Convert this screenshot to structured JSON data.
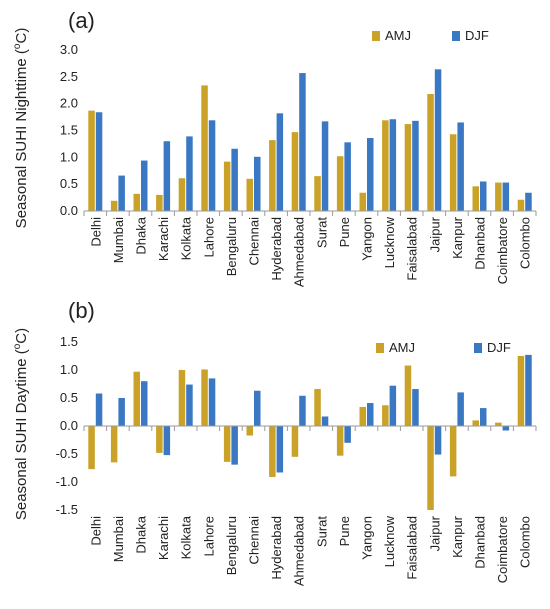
{
  "chart_data": [
    {
      "type": "bar",
      "panel_label": "(a)",
      "ylabel": "Seasonal SUHI Nighttime (°C)",
      "ylabel_main": "Seasonal SUHI Nighttime (",
      "ylabel_sup": "o",
      "ylabel_unit": "C)",
      "ylim": [
        0,
        3.0
      ],
      "yticks": [
        "0.0",
        "0.5",
        "1.0",
        "1.5",
        "2.0",
        "2.5",
        "3.0"
      ],
      "legend_position": "top-right",
      "grid": false,
      "categories": [
        "Delhi",
        "Mumbai",
        "Dhaka",
        "Karachi",
        "Kolkata",
        "Lahore",
        "Bengaluru",
        "Chennai",
        "Hyderabad",
        "Ahmedabad",
        "Surat",
        "Pune",
        "Yangon",
        "Lucknow",
        "Faisalabad",
        "Jaipur",
        "Kanpur",
        "Dhanbad",
        "Coimbatore",
        "Colombo"
      ],
      "series": [
        {
          "name": "AMJ",
          "color": "#c9a227",
          "values": [
            1.87,
            0.19,
            0.32,
            0.3,
            0.61,
            2.34,
            0.92,
            0.6,
            1.32,
            1.47,
            0.65,
            1.02,
            0.34,
            1.69,
            1.62,
            2.18,
            1.43,
            0.46,
            0.53,
            0.21
          ]
        },
        {
          "name": "DJF",
          "color": "#3a78c4",
          "values": [
            1.84,
            0.66,
            0.94,
            1.3,
            1.39,
            1.69,
            1.16,
            1.01,
            1.82,
            2.57,
            1.67,
            1.28,
            1.36,
            1.71,
            1.68,
            2.64,
            1.65,
            0.55,
            0.53,
            0.34
          ]
        }
      ]
    },
    {
      "type": "bar",
      "panel_label": "(b)",
      "ylabel": "Seasonal SUHI Daytime (°C)",
      "ylabel_main": "Seasonal SUHI Daytime (",
      "ylabel_sup": "o",
      "ylabel_unit": "C)",
      "ylim": [
        -1.5,
        1.5
      ],
      "yticks": [
        "-1.5",
        "-1.0",
        "-0.5",
        "0.0",
        "0.5",
        "1.0",
        "1.5"
      ],
      "legend_position": "top-right",
      "grid": false,
      "categories": [
        "Delhi",
        "Mumbai",
        "Dhaka",
        "Karachi",
        "Kolkata",
        "Lahore",
        "Bengaluru",
        "Chennai",
        "Hyderabad",
        "Ahmedabad",
        "Surat",
        "Pune",
        "Yangon",
        "Lucknow",
        "Faisalabad",
        "Jaipur",
        "Kanpur",
        "Dhanbad",
        "Coimbatore",
        "Colombo"
      ],
      "series": [
        {
          "name": "AMJ",
          "color": "#c9a227",
          "values": [
            -0.77,
            -0.65,
            0.97,
            -0.48,
            1.0,
            1.01,
            -0.64,
            -0.17,
            -0.91,
            -0.55,
            0.66,
            -0.53,
            0.34,
            0.37,
            1.08,
            -1.5,
            -0.9,
            0.1,
            0.06,
            1.25
          ]
        },
        {
          "name": "DJF",
          "color": "#3a78c4",
          "values": [
            0.58,
            0.5,
            0.8,
            -0.52,
            0.74,
            0.85,
            -0.69,
            0.63,
            -0.83,
            0.54,
            0.17,
            -0.3,
            0.41,
            0.72,
            0.66,
            -0.51,
            0.6,
            0.32,
            -0.08,
            1.27
          ]
        }
      ]
    }
  ]
}
